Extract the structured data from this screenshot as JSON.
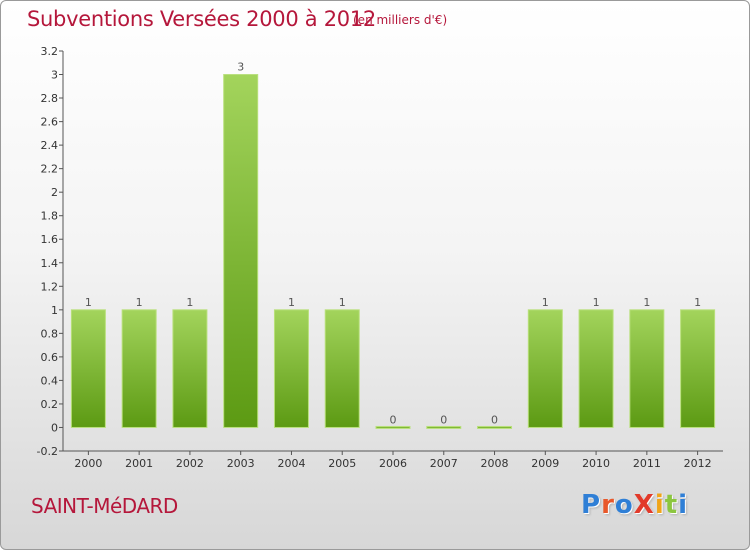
{
  "header": {
    "title": "Subventions Versées 2000 à 2012",
    "unit_note": "(en milliers d'€)"
  },
  "footer": {
    "commune": "SAINT-MéDARD",
    "logo": {
      "text": "ProXiti",
      "letter_colors": [
        "#2f7fd6",
        "#e8582a",
        "#2f7fd6",
        "#e23a2a",
        "#f0a419",
        "#8cc63f",
        "#2f7fd6"
      ]
    }
  },
  "colors": {
    "title": "#b5173b",
    "bar_top": "#a3d45c",
    "bar_bottom": "#5c9a13",
    "axis": "#555555"
  },
  "chart_data": {
    "type": "bar",
    "title": "Subventions Versées 2000 à 2012",
    "subtitle": "(en milliers d'€)",
    "categories": [
      "2000",
      "2001",
      "2002",
      "2003",
      "2004",
      "2005",
      "2006",
      "2007",
      "2008",
      "2009",
      "2010",
      "2011",
      "2012"
    ],
    "values": [
      1,
      1,
      1,
      3,
      1,
      1,
      0,
      0,
      0,
      1,
      1,
      1,
      1
    ],
    "value_labels": [
      "1",
      "1",
      "1",
      "3",
      "1",
      "1",
      "0",
      "0",
      "0",
      "1",
      "1",
      "1",
      "1"
    ],
    "ylim": [
      -0.2,
      3.2
    ],
    "y_ticks": [
      "-0.2",
      "0",
      "0.2",
      "0.4",
      "0.6",
      "0.8",
      "1",
      "1.2",
      "1.4",
      "1.6",
      "1.8",
      "2",
      "2.2",
      "2.4",
      "2.6",
      "2.8",
      "3",
      "3.2"
    ],
    "y_tick_values": [
      -0.2,
      0,
      0.2,
      0.4,
      0.6,
      0.8,
      1,
      1.2,
      1.4,
      1.6,
      1.8,
      2,
      2.2,
      2.4,
      2.6,
      2.8,
      3,
      3.2
    ],
    "xlabel": "",
    "ylabel": "",
    "grid": false,
    "legend": "none"
  }
}
